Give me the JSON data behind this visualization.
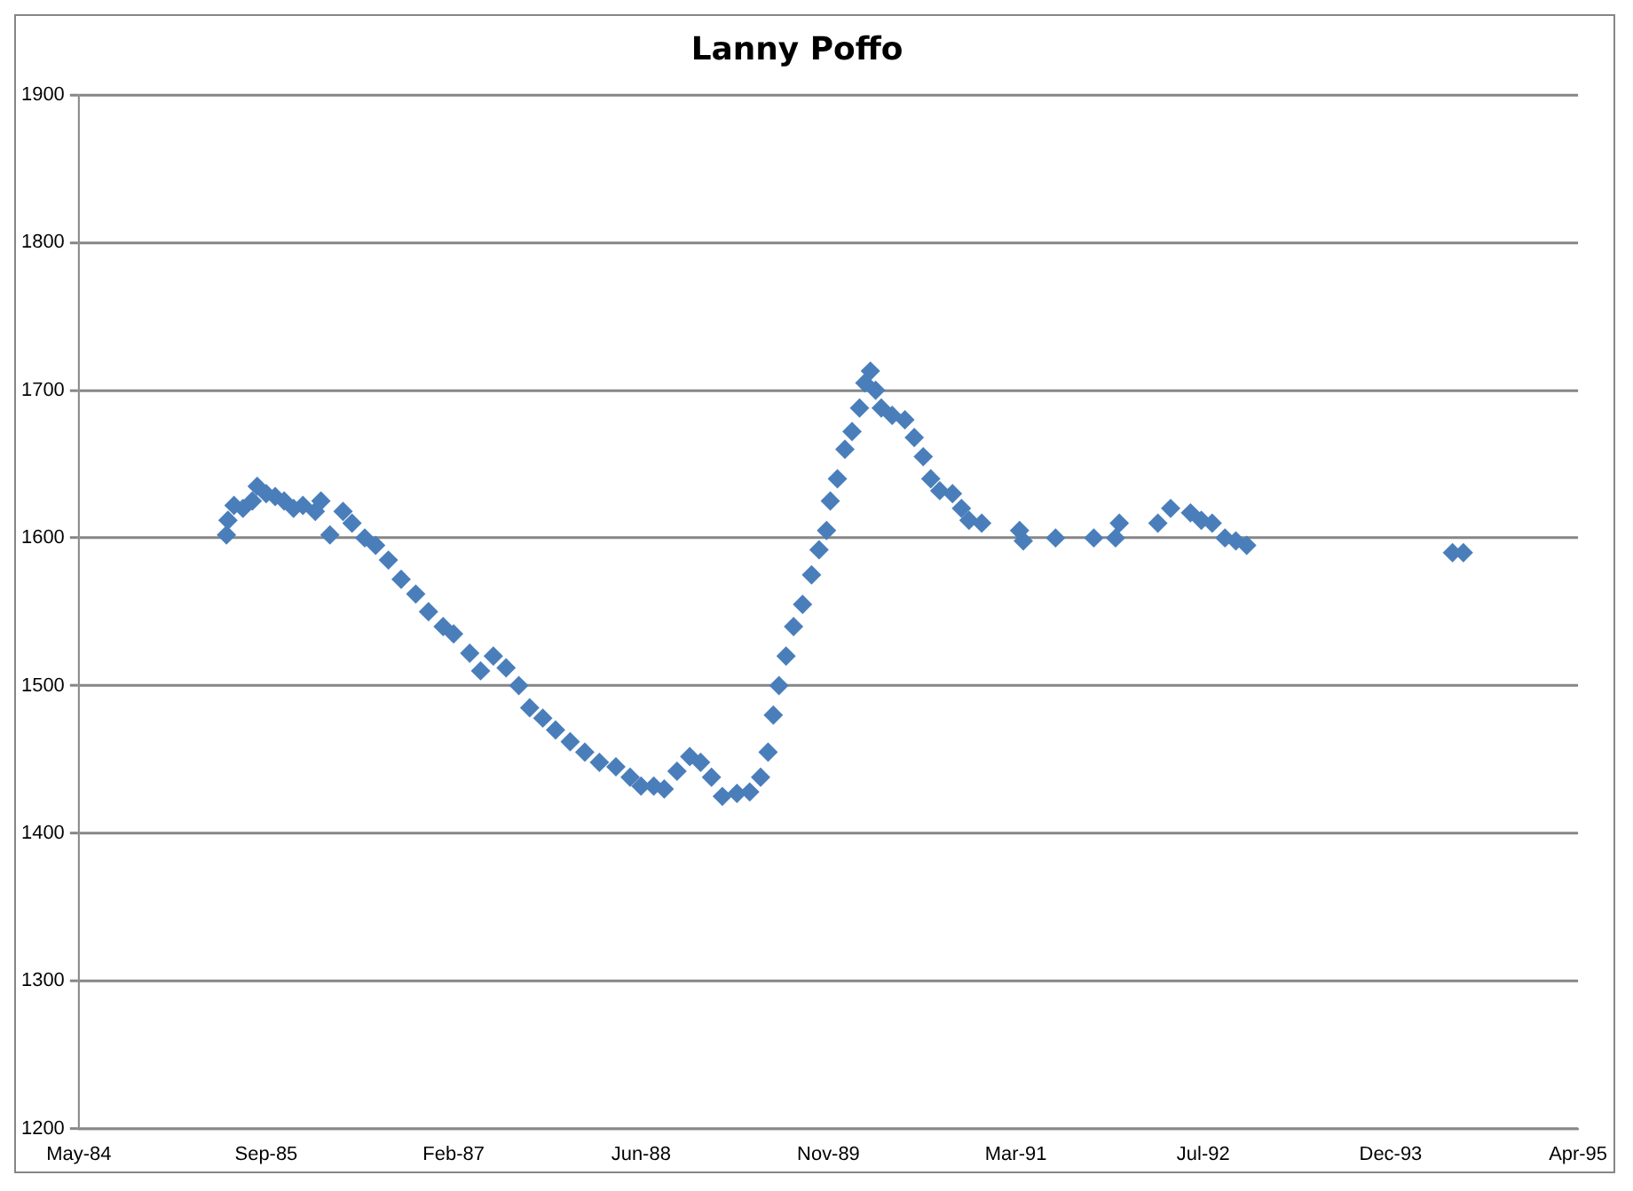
{
  "chart_data": {
    "type": "scatter",
    "title": "Lanny Poffo",
    "marker": "diamond",
    "color": "#4a7ebb",
    "grid": "y",
    "xlim": [
      "1984-05-13",
      "1995-04-26"
    ],
    "xticks": [
      {
        "value": "1984-05-13",
        "label": "May-84"
      },
      {
        "value": "1985-09-25",
        "label": "Sep-85"
      },
      {
        "value": "1987-02-07",
        "label": "Feb-87"
      },
      {
        "value": "1988-06-21",
        "label": "Jun-88"
      },
      {
        "value": "1989-11-03",
        "label": "Nov-89"
      },
      {
        "value": "1991-03-18",
        "label": "Mar-91"
      },
      {
        "value": "1992-07-30",
        "label": "Jul-92"
      },
      {
        "value": "1993-12-12",
        "label": "Dec-93"
      },
      {
        "value": "1995-04-26",
        "label": "Apr-95"
      }
    ],
    "ylim": [
      1200,
      1900
    ],
    "yticks": [
      1200,
      1300,
      1400,
      1500,
      1600,
      1700,
      1800,
      1900
    ],
    "x": [
      "1985-06-11",
      "1985-06-15",
      "1985-07-01",
      "1985-07-25",
      "1985-08-19",
      "1985-09-01",
      "1985-09-25",
      "1985-10-19",
      "1985-11-12",
      "1985-12-07",
      "1986-01-01",
      "1986-02-03",
      "1986-02-18",
      "1986-03-14",
      "1986-04-18",
      "1986-05-12",
      "1986-06-15",
      "1986-07-14",
      "1986-08-17",
      "1986-09-20",
      "1986-10-29",
      "1986-12-02",
      "1987-01-10",
      "1987-02-07",
      "1987-03-22",
      "1987-04-20",
      "1987-05-24",
      "1987-06-27",
      "1987-07-31",
      "1987-08-29",
      "1987-10-03",
      "1987-11-06",
      "1987-12-15",
      "1988-01-23",
      "1988-03-02",
      "1988-04-15",
      "1988-05-23",
      "1988-06-21",
      "1988-07-25",
      "1988-08-22",
      "1988-09-25",
      "1988-10-29",
      "1988-11-27",
      "1988-12-26",
      "1989-01-24",
      "1989-03-04",
      "1989-04-07",
      "1989-05-06",
      "1989-05-26",
      "1989-06-09",
      "1989-06-24",
      "1989-07-13",
      "1989-08-02",
      "1989-08-26",
      "1989-09-19",
      "1989-10-09",
      "1989-10-29",
      "1989-11-08",
      "1989-11-27",
      "1989-12-17",
      "1990-01-05",
      "1990-01-25",
      "1990-02-08",
      "1990-02-23",
      "1990-03-09",
      "1990-03-24",
      "1990-04-22",
      "1990-05-26",
      "1990-06-20",
      "1990-07-14",
      "1990-08-03",
      "1990-08-27",
      "1990-09-30",
      "1990-10-24",
      "1990-11-13",
      "1990-12-17",
      "1991-03-28",
      "1991-04-07",
      "1991-07-02",
      "1991-10-12",
      "1991-12-09",
      "1991-12-19",
      "1992-03-31",
      "1992-05-04",
      "1992-06-26",
      "1992-07-25",
      "1992-08-23",
      "1992-09-26",
      "1992-10-25",
      "1992-11-23",
      "1994-05-26",
      "1994-06-24"
    ],
    "values": [
      1602,
      1612,
      1622,
      1620,
      1625,
      1635,
      1630,
      1628,
      1625,
      1620,
      1622,
      1618,
      1625,
      1602,
      1618,
      1610,
      1600,
      1595,
      1585,
      1572,
      1562,
      1550,
      1540,
      1535,
      1522,
      1510,
      1520,
      1512,
      1500,
      1485,
      1478,
      1470,
      1462,
      1455,
      1448,
      1445,
      1438,
      1432,
      1432,
      1430,
      1442,
      1452,
      1448,
      1438,
      1425,
      1427,
      1428,
      1438,
      1455,
      1480,
      1500,
      1520,
      1540,
      1555,
      1575,
      1592,
      1605,
      1625,
      1640,
      1660,
      1672,
      1688,
      1705,
      1713,
      1700,
      1688,
      1683,
      1680,
      1668,
      1655,
      1640,
      1632,
      1630,
      1620,
      1612,
      1610,
      1605,
      1598,
      1600,
      1600,
      1600,
      1610,
      1610,
      1620,
      1617,
      1612,
      1610,
      1600,
      1598,
      1595,
      1590,
      1590
    ]
  }
}
